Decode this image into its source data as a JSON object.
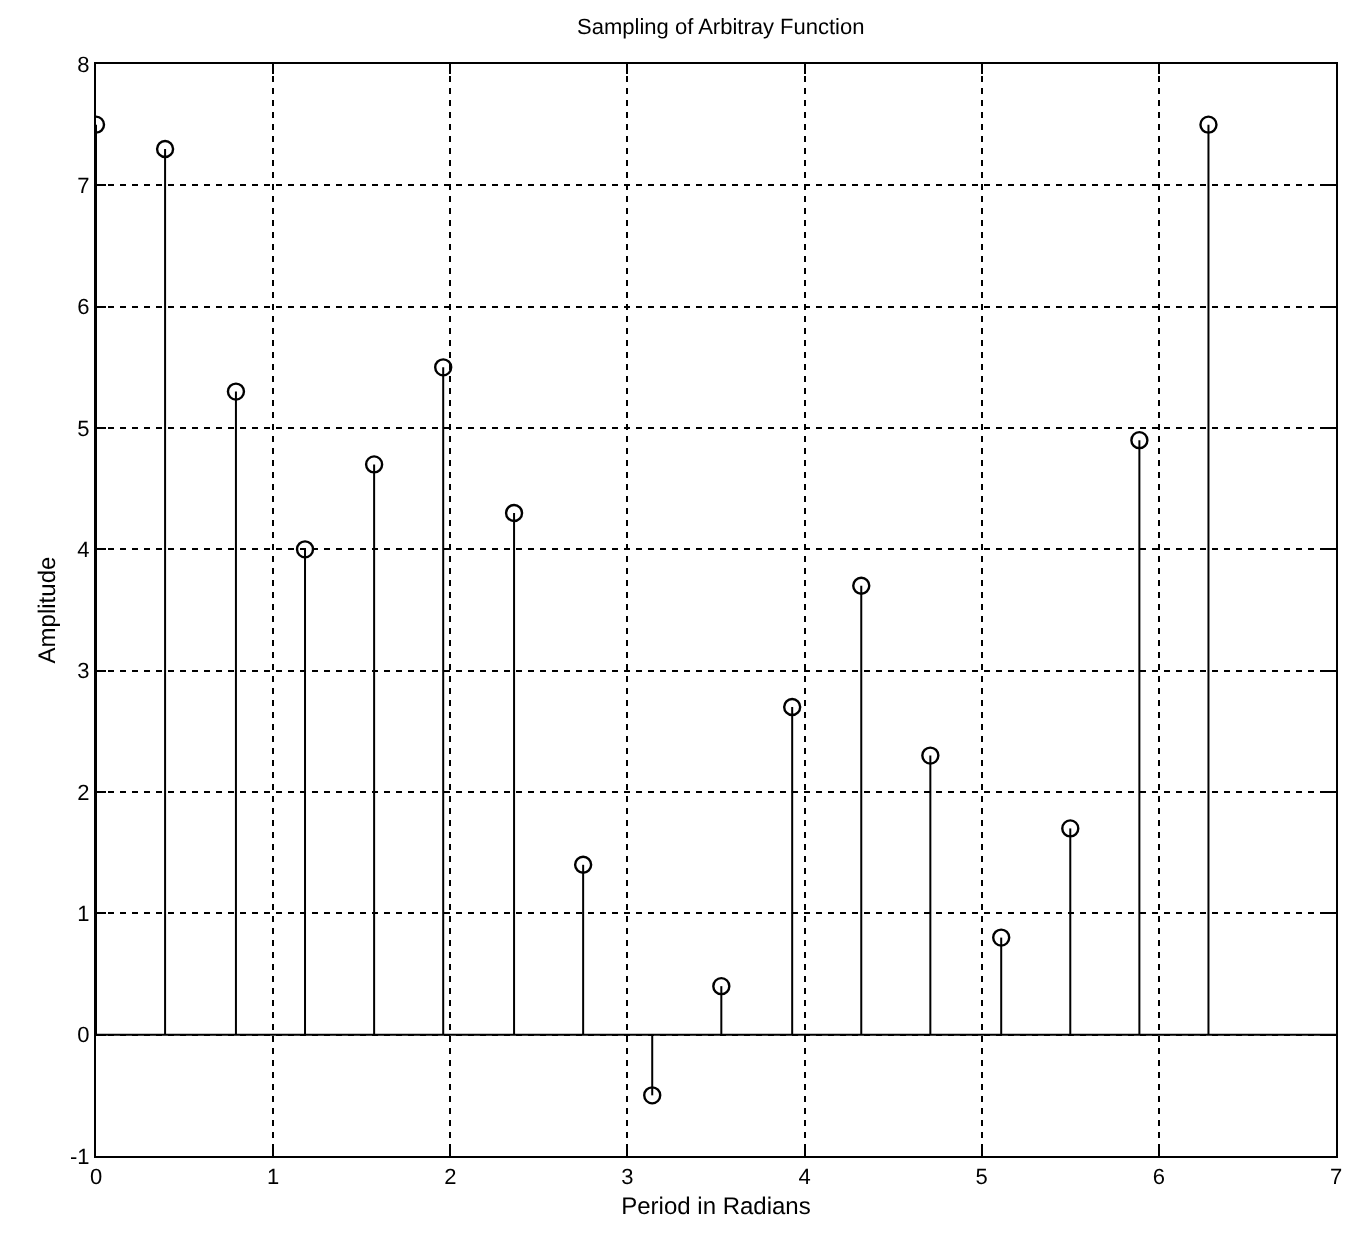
{
  "chart_data": {
    "type": "lollipop",
    "title": "Sampling of Arbitray Function",
    "xlabel": "Period in Radians",
    "ylabel": "Amplitude",
    "x": [
      0,
      0.39,
      0.79,
      1.18,
      1.57,
      1.96,
      2.36,
      2.75,
      3.14,
      3.53,
      3.93,
      4.32,
      4.71,
      5.11,
      5.5,
      5.89,
      6.28
    ],
    "values": [
      7.5,
      7.3,
      5.3,
      4.0,
      4.7,
      5.5,
      4.3,
      1.4,
      -0.5,
      0.4,
      2.7,
      3.7,
      2.3,
      0.8,
      1.7,
      4.9,
      7.5
    ],
    "color": "#000000",
    "marker": "circle",
    "xlim": [
      0,
      7
    ],
    "xticks": [
      0,
      1,
      2,
      3,
      4,
      5,
      6,
      7
    ],
    "ylim": [
      -1,
      8
    ],
    "yticks": [
      -1,
      0,
      1,
      2,
      3,
      4,
      5,
      6,
      7,
      8
    ],
    "ref_lines": [
      {
        "axis": "y",
        "value": 0,
        "color": "#000000"
      }
    ],
    "grid": true,
    "line_style": "solid"
  }
}
